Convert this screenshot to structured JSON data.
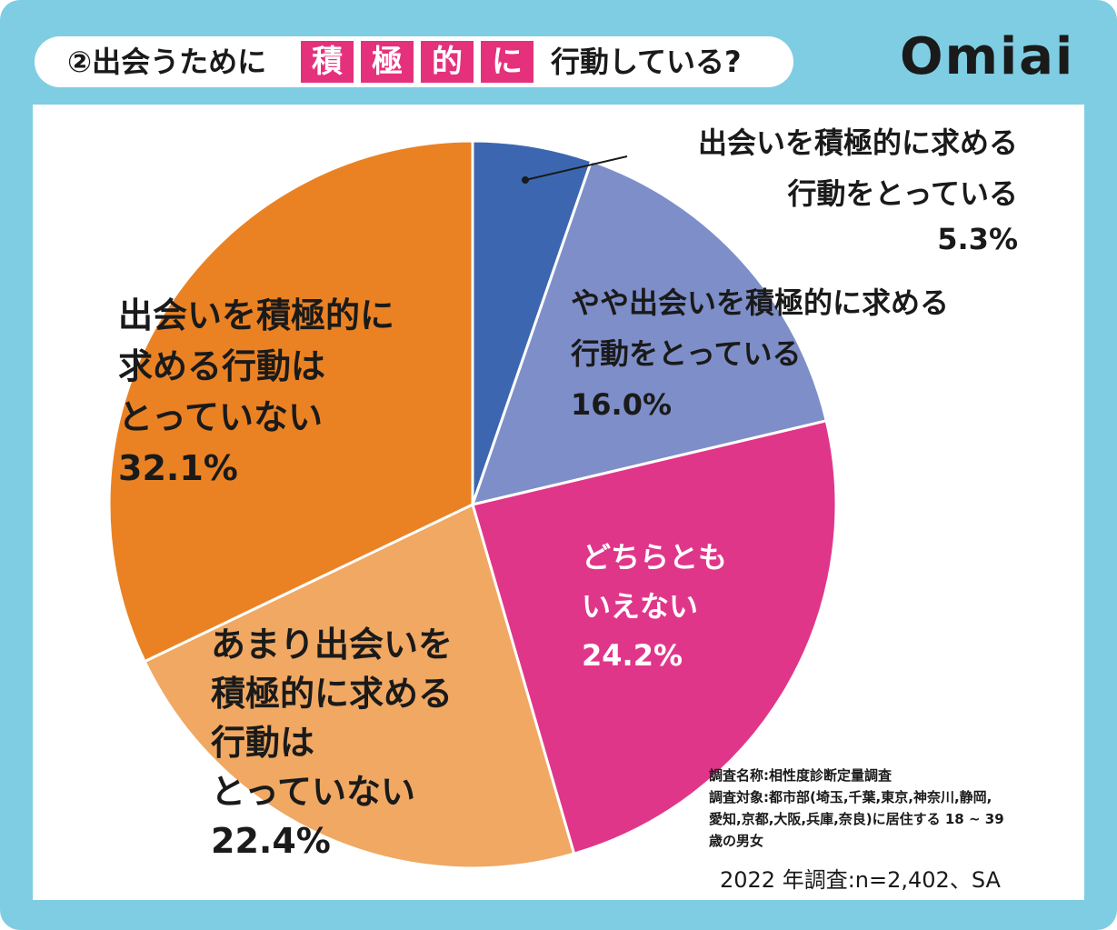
{
  "header": {
    "title_prefix": "②出会うために",
    "highlight_chars": [
      "積",
      "極",
      "的",
      "に"
    ],
    "title_suffix": "行動している?",
    "brand_logo": "Omiai"
  },
  "colors": {
    "frame": "#7fcde3",
    "highlight": "#e5317c",
    "slices": [
      "#3c67b0",
      "#7e8ec8",
      "#e0368a",
      "#f0a862",
      "#ea8224"
    ]
  },
  "chart_data": {
    "type": "pie",
    "start_angle": "12 o'clock",
    "direction": "clockwise",
    "slices": [
      {
        "label": "出会いを積極的に求める行動をとっている",
        "value": 5.3,
        "display": "5.3%"
      },
      {
        "label": "やや出会いを積極的に求める行動をとっている",
        "value": 16.0,
        "display": "16.0%"
      },
      {
        "label": "どちらともいえない",
        "value": 24.2,
        "display": "24.2%"
      },
      {
        "label": "あまり出会いを積極的に求める行動はとっていない",
        "value": 22.4,
        "display": "22.4%"
      },
      {
        "label": "出会いを積極的に求める行動はとっていない",
        "value": 32.1,
        "display": "32.1%"
      }
    ],
    "label_lines": [
      [
        "出会いを積極的に求める",
        "行動をとっている"
      ],
      [
        "やや出会いを積極的に求める",
        "行動をとっている"
      ],
      [
        "どちらとも",
        "いえない"
      ],
      [
        "あまり出会いを",
        "積極的に求める",
        "行動は",
        "とっていない"
      ],
      [
        "出会いを積極的に",
        "求める行動は",
        "とっていない"
      ]
    ]
  },
  "footnote": {
    "lines": [
      "調査名称:相性度診断定量調査",
      "調査対象:都市部(埼玉,千葉,東京,神奈川,静岡,",
      "愛知,京都,大阪,兵庫,奈良)に居住する 18 ~ 39",
      "歳の男女"
    ],
    "survey": "2022 年調査:n=2,402、SA"
  }
}
